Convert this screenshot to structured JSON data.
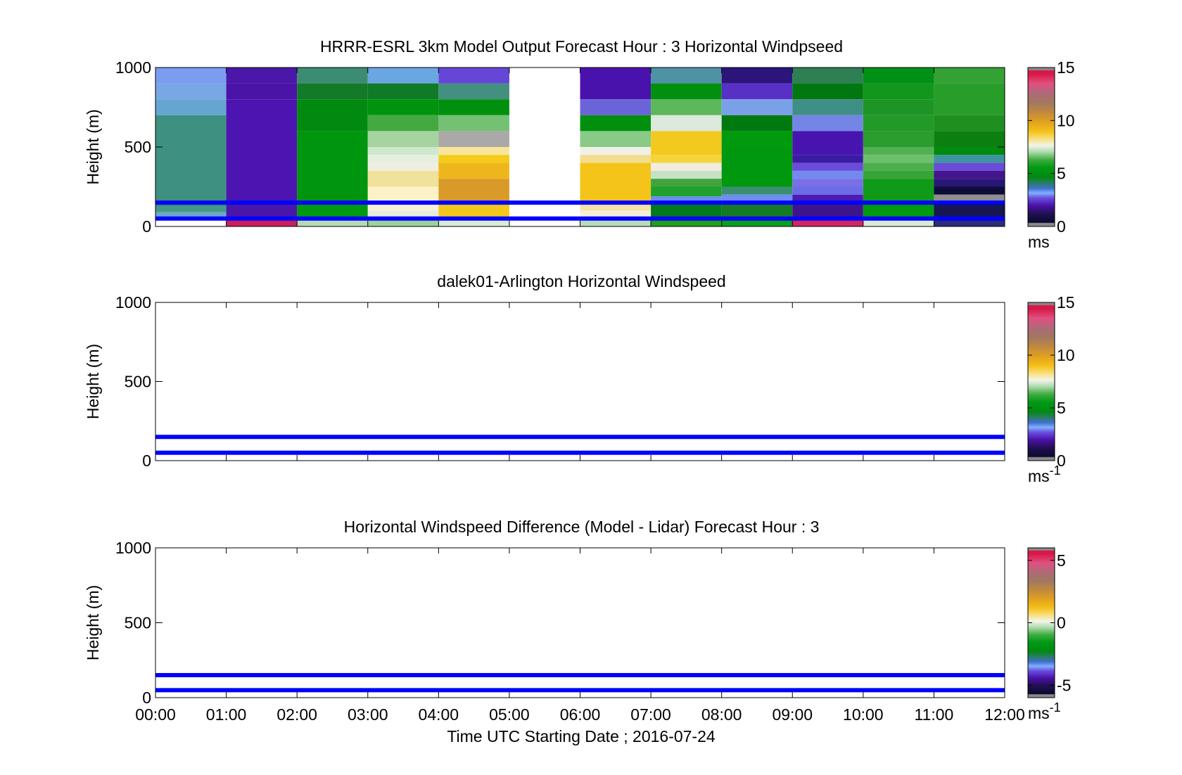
{
  "figure": {
    "xlabel": "Time UTC  Starting Date ; 2016-07-24",
    "xticks": [
      "00:00",
      "01:00",
      "02:00",
      "03:00",
      "04:00",
      "05:00",
      "06:00",
      "07:00",
      "08:00",
      "09:00",
      "10:00",
      "11:00",
      "12:00"
    ]
  },
  "chart_data": [
    {
      "type": "heatmap",
      "title": "HRRR-ESRL 3km Model Output   Forecast Hour : 3 Horizontal Windpseed",
      "ylabel": "Height (m)",
      "xlim": [
        0,
        12
      ],
      "ylim": [
        0,
        1000
      ],
      "yticks": [
        "0",
        "500",
        "1000"
      ],
      "colorbar": {
        "ticks": [
          "0",
          "5",
          "10",
          "15"
        ],
        "tick_values": [
          0,
          5,
          10,
          15
        ],
        "range": [
          0,
          15
        ],
        "unit": "ms",
        "unit_sup": ""
      },
      "reference_lines_m": [
        50,
        150
      ],
      "reference_line_color": "#0000ff",
      "empty_column_hours": [
        5
      ],
      "columns": [
        {
          "x0": 0,
          "cells": [
            [
              1000,
              900,
              "#7b9cf1"
            ],
            [
              900,
              800,
              "#79a6e4"
            ],
            [
              800,
              700,
              "#66a5cf"
            ],
            [
              700,
              150,
              "#3e9180"
            ],
            [
              150,
              120,
              "#3e9180"
            ],
            [
              120,
              90,
              "#43988a"
            ],
            [
              90,
              60,
              "#6aa7c4"
            ],
            [
              60,
              0,
              "#ffffff"
            ]
          ]
        },
        {
          "x0": 1,
          "cells": [
            [
              1000,
              900,
              "#4a17a8"
            ],
            [
              900,
              800,
              "#4a14a8"
            ],
            [
              800,
              150,
              "#4e14b2"
            ],
            [
              150,
              60,
              "#4a16aa"
            ],
            [
              60,
              0,
              "#c8205c"
            ]
          ]
        },
        {
          "x0": 2,
          "cells": [
            [
              1000,
              900,
              "#3c8c73"
            ],
            [
              900,
              800,
              "#137a27"
            ],
            [
              800,
              600,
              "#008a10"
            ],
            [
              600,
              150,
              "#00950e"
            ],
            [
              150,
              60,
              "#009a10"
            ],
            [
              60,
              0,
              "#b6dab6"
            ]
          ]
        },
        {
          "x0": 3,
          "cells": [
            [
              1000,
              900,
              "#6aa6e2"
            ],
            [
              900,
              800,
              "#117a27"
            ],
            [
              800,
              700,
              "#00940e"
            ],
            [
              700,
              600,
              "#43aa42"
            ],
            [
              600,
              500,
              "#a6d4a0"
            ],
            [
              500,
              450,
              "#cde8cd"
            ],
            [
              450,
              400,
              "#e4efe0"
            ],
            [
              400,
              350,
              "#f0eee0"
            ],
            [
              350,
              250,
              "#efe29a"
            ],
            [
              250,
              150,
              "#fbf2c8"
            ],
            [
              150,
              100,
              "#f7f2d8"
            ],
            [
              100,
              60,
              "#e6ecdf"
            ],
            [
              60,
              0,
              "#9cd29c"
            ]
          ]
        },
        {
          "x0": 4,
          "cells": [
            [
              1000,
              900,
              "#6646d6"
            ],
            [
              900,
              800,
              "#449080"
            ],
            [
              800,
              700,
              "#00900e"
            ],
            [
              700,
              600,
              "#74c173"
            ],
            [
              600,
              500,
              "#aaa9a7"
            ],
            [
              500,
              450,
              "#f7e59a"
            ],
            [
              450,
              400,
              "#f4cb19"
            ],
            [
              400,
              300,
              "#eeb61d"
            ],
            [
              300,
              150,
              "#d99a2a"
            ],
            [
              150,
              60,
              "#f4c81a"
            ],
            [
              60,
              0,
              "#d9ecd9"
            ]
          ]
        },
        {
          "x0": 6,
          "cells": [
            [
              1000,
              800,
              "#4a12ad"
            ],
            [
              800,
              700,
              "#6b64d8"
            ],
            [
              700,
              600,
              "#00900e"
            ],
            [
              600,
              500,
              "#88ca86"
            ],
            [
              500,
              450,
              "#f0f0e6"
            ],
            [
              450,
              400,
              "#f1dd8d"
            ],
            [
              400,
              150,
              "#f4c41a"
            ],
            [
              150,
              100,
              "#f3e3a3"
            ],
            [
              100,
              60,
              "#f6efd6"
            ],
            [
              60,
              0,
              "#b9dcb9"
            ]
          ]
        },
        {
          "x0": 7,
          "cells": [
            [
              1000,
              900,
              "#4e92a4"
            ],
            [
              900,
              800,
              "#00900e"
            ],
            [
              800,
              700,
              "#5db75b"
            ],
            [
              700,
              600,
              "#dce9dc"
            ],
            [
              600,
              450,
              "#f2c91d"
            ],
            [
              450,
              400,
              "#f4d43b"
            ],
            [
              400,
              350,
              "#f1ecdf"
            ],
            [
              350,
              300,
              "#c6e2c6"
            ],
            [
              300,
              250,
              "#3fa43f"
            ],
            [
              250,
              190,
              "#20a02c"
            ],
            [
              190,
              150,
              "#6a90e6"
            ],
            [
              150,
              60,
              "#007a1d"
            ],
            [
              60,
              0,
              "#1ea01d"
            ]
          ]
        },
        {
          "x0": 8,
          "cells": [
            [
              1000,
              900,
              "#2c157a"
            ],
            [
              900,
              800,
              "#5830c6"
            ],
            [
              800,
              700,
              "#7aa1e8"
            ],
            [
              700,
              600,
              "#00790f"
            ],
            [
              600,
              500,
              "#009a0e"
            ],
            [
              500,
              250,
              "#00980e"
            ],
            [
              250,
              200,
              "#3a8f72"
            ],
            [
              200,
              150,
              "#6c8df2"
            ],
            [
              150,
              60,
              "#157a25"
            ],
            [
              60,
              0,
              "#0a9f1d"
            ]
          ]
        },
        {
          "x0": 9,
          "cells": [
            [
              1000,
              900,
              "#2e7f53"
            ],
            [
              900,
              800,
              "#00780f"
            ],
            [
              800,
              700,
              "#3e8f86"
            ],
            [
              700,
              600,
              "#7485e6"
            ],
            [
              600,
              450,
              "#4714b0"
            ],
            [
              450,
              400,
              "#3a1ca2"
            ],
            [
              400,
              350,
              "#6b4bd9"
            ],
            [
              350,
              300,
              "#7389ef"
            ],
            [
              300,
              250,
              "#7b6fe8"
            ],
            [
              250,
              200,
              "#6b6ce6"
            ],
            [
              200,
              150,
              "#4e1ab4"
            ],
            [
              150,
              60,
              "#3e148c"
            ],
            [
              60,
              0,
              "#d02663"
            ]
          ]
        },
        {
          "x0": 10,
          "cells": [
            [
              1000,
              900,
              "#009015"
            ],
            [
              900,
              800,
              "#11981c"
            ],
            [
              800,
              700,
              "#1e9426"
            ],
            [
              700,
              600,
              "#229a28"
            ],
            [
              600,
              500,
              "#2b9d2e"
            ],
            [
              500,
              450,
              "#52b053"
            ],
            [
              450,
              400,
              "#6ebf6d"
            ],
            [
              400,
              350,
              "#4caf4c"
            ],
            [
              350,
              300,
              "#36a436"
            ],
            [
              300,
              150,
              "#0f9a18"
            ],
            [
              150,
              60,
              "#009a10"
            ],
            [
              60,
              0,
              "#d8ecd8"
            ]
          ]
        },
        {
          "x0": 11,
          "cells": [
            [
              1000,
              900,
              "#34a134"
            ],
            [
              900,
              700,
              "#289d2a"
            ],
            [
              700,
              600,
              "#1f8f20"
            ],
            [
              600,
              500,
              "#0b8010"
            ],
            [
              500,
              450,
              "#008a0e"
            ],
            [
              450,
              400,
              "#3e94a0"
            ],
            [
              400,
              350,
              "#6b4bd7"
            ],
            [
              350,
              300,
              "#44158e"
            ],
            [
              300,
              250,
              "#2a1676"
            ],
            [
              250,
              200,
              "#0d0d3a"
            ],
            [
              200,
              150,
              "#8e8e8e"
            ],
            [
              150,
              60,
              "#161650"
            ],
            [
              60,
              0,
              "#2c2c7a"
            ]
          ]
        }
      ]
    },
    {
      "type": "heatmap",
      "title": "dalek01-Arlington  Horizontal Windspeed",
      "ylabel": "Height (m)",
      "xlim": [
        0,
        12
      ],
      "ylim": [
        0,
        1000
      ],
      "yticks": [
        "0",
        "500",
        "1000"
      ],
      "colorbar": {
        "ticks": [
          "0",
          "5",
          "10",
          "15"
        ],
        "tick_values": [
          0,
          5,
          10,
          15
        ],
        "range": [
          0,
          15
        ],
        "unit": "ms",
        "unit_sup": "-1"
      },
      "reference_lines_m": [
        50,
        150
      ],
      "reference_line_color": "#0000ff",
      "columns": []
    },
    {
      "type": "heatmap",
      "title": "Horizontal Windspeed Difference (Model - Lidar) Forecast Hour : 3",
      "ylabel": "Height (m)",
      "xlim": [
        0,
        12
      ],
      "ylim": [
        0,
        1000
      ],
      "yticks": [
        "0",
        "500",
        "1000"
      ],
      "colorbar": {
        "ticks": [
          "-5",
          "0",
          "5"
        ],
        "tick_values": [
          -5,
          0,
          5
        ],
        "range": [
          -6,
          6
        ],
        "unit": "ms",
        "unit_sup": "-1"
      },
      "reference_lines_m": [
        50,
        150
      ],
      "reference_line_color": "#0000ff",
      "columns": []
    }
  ],
  "colormap": {
    "stops": [
      [
        0.0,
        "#8a8a8a"
      ],
      [
        0.02,
        "#8a8a8a"
      ],
      [
        0.025,
        "#0a0a30"
      ],
      [
        0.08,
        "#221050"
      ],
      [
        0.13,
        "#4a10a8"
      ],
      [
        0.18,
        "#6a50e0"
      ],
      [
        0.21,
        "#80b0ff"
      ],
      [
        0.24,
        "#4070d0"
      ],
      [
        0.27,
        "#2c7c6c"
      ],
      [
        0.31,
        "#008a10"
      ],
      [
        0.37,
        "#009a14"
      ],
      [
        0.42,
        "#40ac40"
      ],
      [
        0.47,
        "#b0dcb0"
      ],
      [
        0.51,
        "#f4f4ea"
      ],
      [
        0.55,
        "#f8e080"
      ],
      [
        0.6,
        "#f4c018"
      ],
      [
        0.66,
        "#e0a020"
      ],
      [
        0.72,
        "#c08840"
      ],
      [
        0.78,
        "#a07860"
      ],
      [
        0.84,
        "#b06878"
      ],
      [
        0.9,
        "#e05080"
      ],
      [
        0.96,
        "#d81848"
      ],
      [
        0.98,
        "#d81848"
      ],
      [
        0.985,
        "#8a8a8a"
      ],
      [
        1.0,
        "#8a8a8a"
      ]
    ]
  }
}
